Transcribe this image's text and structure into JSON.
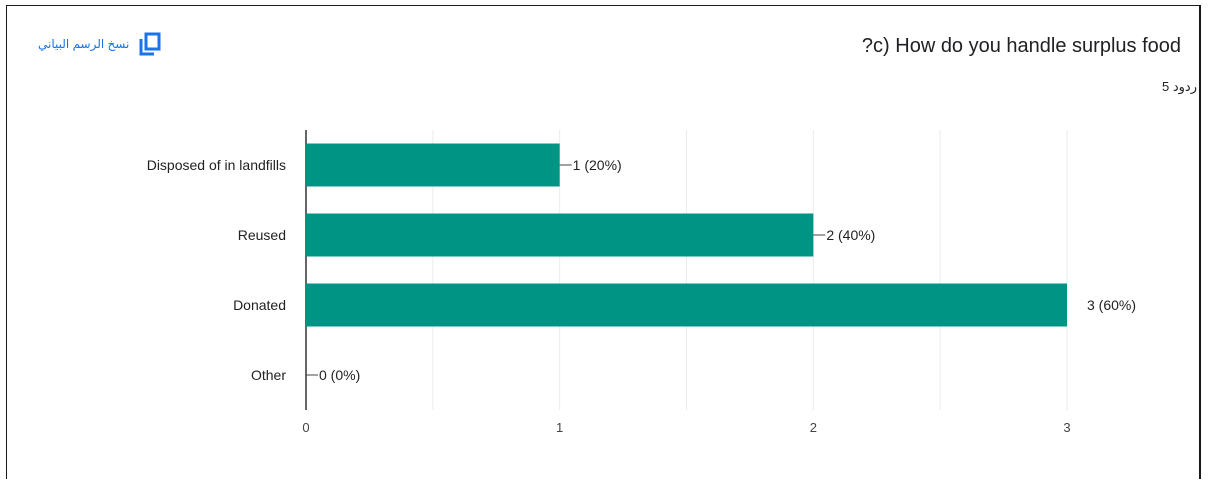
{
  "header": {
    "copy_chart_label": "نسخ الرسم البياني",
    "copy_icon": "copy-icon",
    "title": "?c) How do you handle surplus food",
    "responses": "5 ردود"
  },
  "colors": {
    "bar": "#009485",
    "accent": "#1a73e8"
  },
  "chart_data": {
    "type": "bar",
    "orientation": "horizontal",
    "categories": [
      "Disposed of in landfills",
      "Reused",
      "Donated",
      "Other"
    ],
    "values": [
      1,
      2,
      3,
      0
    ],
    "data_labels": [
      "1 (20%)",
      "2 (40%)",
      "3 (60%)",
      "0 (0%)"
    ],
    "xlim": [
      0,
      3
    ],
    "xticks": [
      0,
      1,
      2,
      3
    ],
    "grid": true,
    "title": "?c) How do you handle surplus food"
  }
}
